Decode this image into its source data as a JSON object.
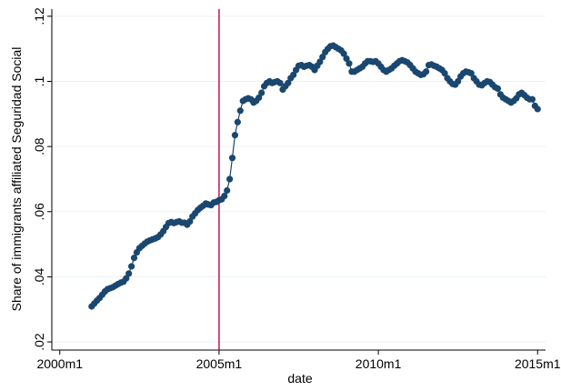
{
  "chart_data": {
    "type": "line",
    "x_label": "date",
    "y_label": "Share of immigrants affiliated Seguridad Social",
    "xlim": [
      "1999m10",
      "2015m4"
    ],
    "xticks": [
      "2000m1",
      "2005m1",
      "2010m1",
      "2015m1"
    ],
    "ylim": [
      0.0175,
      0.1222
    ],
    "yticks": [
      {
        "value": 0.02,
        "label": ".02"
      },
      {
        "value": 0.04,
        "label": ".04"
      },
      {
        "value": 0.06,
        "label": ".06"
      },
      {
        "value": 0.08,
        "label": ".08"
      },
      {
        "value": 0.1,
        "label": ".1"
      },
      {
        "value": 0.12,
        "label": ".12"
      }
    ],
    "grid": true,
    "xline": "2005m1",
    "xline_color": "#c0174a",
    "x": [
      "2001m1",
      "2001m2",
      "2001m3",
      "2001m4",
      "2001m5",
      "2001m6",
      "2001m7",
      "2001m8",
      "2001m9",
      "2001m10",
      "2001m11",
      "2001m12",
      "2002m1",
      "2002m2",
      "2002m3",
      "2002m4",
      "2002m5",
      "2002m6",
      "2002m7",
      "2002m8",
      "2002m9",
      "2002m10",
      "2002m11",
      "2002m12",
      "2003m1",
      "2003m2",
      "2003m3",
      "2003m4",
      "2003m5",
      "2003m6",
      "2003m7",
      "2003m8",
      "2003m9",
      "2003m10",
      "2003m11",
      "2003m12",
      "2004m1",
      "2004m2",
      "2004m3",
      "2004m4",
      "2004m5",
      "2004m6",
      "2004m7",
      "2004m8",
      "2004m9",
      "2004m10",
      "2004m11",
      "2004m12",
      "2005m1",
      "2005m2",
      "2005m3",
      "2005m4",
      "2005m5",
      "2005m6",
      "2005m7",
      "2005m8",
      "2005m9",
      "2005m10",
      "2005m11",
      "2005m12",
      "2006m1",
      "2006m2",
      "2006m3",
      "2006m4",
      "2006m5",
      "2006m6",
      "2006m7",
      "2006m8",
      "2006m9",
      "2006m10",
      "2006m11",
      "2006m12",
      "2007m1",
      "2007m2",
      "2007m3",
      "2007m4",
      "2007m5",
      "2007m6",
      "2007m7",
      "2007m8",
      "2007m9",
      "2007m10",
      "2007m11",
      "2007m12",
      "2008m1",
      "2008m2",
      "2008m3",
      "2008m4",
      "2008m5",
      "2008m6",
      "2008m7",
      "2008m8",
      "2008m9",
      "2008m10",
      "2008m11",
      "2008m12",
      "2009m1",
      "2009m2",
      "2009m3",
      "2009m4",
      "2009m5",
      "2009m6",
      "2009m7",
      "2009m8",
      "2009m9",
      "2009m10",
      "2009m11",
      "2009m12",
      "2010m1",
      "2010m2",
      "2010m3",
      "2010m4",
      "2010m5",
      "2010m6",
      "2010m7",
      "2010m8",
      "2010m9",
      "2010m10",
      "2010m11",
      "2010m12",
      "2011m1",
      "2011m2",
      "2011m3",
      "2011m4",
      "2011m5",
      "2011m6",
      "2011m7",
      "2011m8",
      "2011m9",
      "2011m10",
      "2011m11",
      "2011m12",
      "2012m1",
      "2012m2",
      "2012m3",
      "2012m4",
      "2012m5",
      "2012m6",
      "2012m7",
      "2012m8",
      "2012m9",
      "2012m10",
      "2012m11",
      "2012m12",
      "2013m1",
      "2013m2",
      "2013m3",
      "2013m4",
      "2013m5",
      "2013m6",
      "2013m7",
      "2013m8",
      "2013m9",
      "2013m10",
      "2013m11",
      "2013m12",
      "2014m1",
      "2014m2",
      "2014m3",
      "2014m4",
      "2014m5",
      "2014m6",
      "2014m7",
      "2014m8",
      "2014m9",
      "2014m10",
      "2014m11",
      "2014m12",
      "2015m1"
    ],
    "series": [
      {
        "color": "#1a476f",
        "values": [
          0.0309,
          0.0318,
          0.0327,
          0.0335,
          0.0345,
          0.0355,
          0.0362,
          0.0365,
          0.0368,
          0.0373,
          0.0378,
          0.0382,
          0.0385,
          0.0395,
          0.041,
          0.0432,
          0.0458,
          0.0475,
          0.0488,
          0.0495,
          0.0502,
          0.0508,
          0.0512,
          0.0515,
          0.0518,
          0.0522,
          0.053,
          0.054,
          0.0553,
          0.0565,
          0.0568,
          0.0565,
          0.0568,
          0.057,
          0.0566,
          0.0566,
          0.056,
          0.057,
          0.0585,
          0.0595,
          0.0605,
          0.0612,
          0.0618,
          0.0625,
          0.0622,
          0.062,
          0.0628,
          0.063,
          0.0635,
          0.0638,
          0.0648,
          0.0665,
          0.07,
          0.0765,
          0.0835,
          0.0875,
          0.091,
          0.094,
          0.0945,
          0.0948,
          0.0945,
          0.0935,
          0.094,
          0.095,
          0.0965,
          0.0985,
          0.0995,
          0.1,
          0.0995,
          0.0998,
          0.1,
          0.0995,
          0.0975,
          0.0985,
          0.0995,
          0.101,
          0.102,
          0.1035,
          0.1048,
          0.105,
          0.1045,
          0.1048,
          0.105,
          0.1045,
          0.1035,
          0.1048,
          0.106,
          0.1075,
          0.109,
          0.11,
          0.1108,
          0.111,
          0.1105,
          0.11,
          0.1095,
          0.1085,
          0.107,
          0.1055,
          0.103,
          0.103,
          0.1035,
          0.104,
          0.1045,
          0.1055,
          0.1062,
          0.1062,
          0.106,
          0.1062,
          0.1055,
          0.1045,
          0.1035,
          0.103,
          0.1035,
          0.104,
          0.1048,
          0.1055,
          0.1062,
          0.1065,
          0.1062,
          0.1058,
          0.105,
          0.104,
          0.103,
          0.1025,
          0.102,
          0.1022,
          0.103,
          0.105,
          0.1052,
          0.1048,
          0.1045,
          0.104,
          0.1035,
          0.1025,
          0.101,
          0.1,
          0.0992,
          0.099,
          0.1,
          0.1015,
          0.1025,
          0.103,
          0.1028,
          0.1025,
          0.101,
          0.1,
          0.099,
          0.0988,
          0.0995,
          0.1,
          0.0998,
          0.099,
          0.0982,
          0.0978,
          0.096,
          0.095,
          0.0945,
          0.094,
          0.0935,
          0.094,
          0.0948,
          0.096,
          0.0965,
          0.0958,
          0.095,
          0.0945,
          0.0945,
          0.0925,
          0.0915
        ]
      }
    ]
  }
}
